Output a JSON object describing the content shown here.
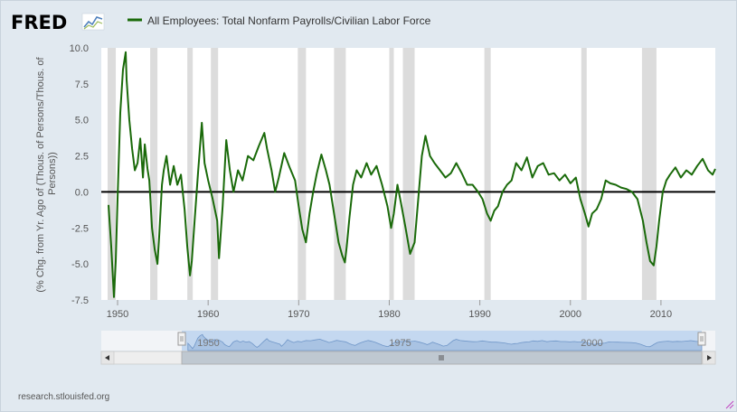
{
  "branding": {
    "logo": "FRED",
    "logo_icon": "fred-line-graph-icon"
  },
  "source": "research.stlouisfed.org",
  "colors": {
    "series": "#1a6a0a",
    "recession": "#dcdcdc",
    "zero_line": "#000000",
    "navigator_fill": "#a9c3e3",
    "navigator_bg": "#c4d8f0"
  },
  "navigator": {
    "labels": [
      "1950",
      "1975",
      "2000"
    ],
    "scrollbar_icons": [
      "scroll-left-arrow-icon",
      "scroll-grip-icon",
      "scroll-right-arrow-icon"
    ]
  },
  "chart_data": {
    "type": "line",
    "title": "",
    "ylabel": "(% Chg. from Yr. Ago of (Thous. of Persons/Thous. of Persons))",
    "xlabel": "",
    "xlim": [
      1948.2,
      2016.0
    ],
    "ylim": [
      -7.5,
      10.0
    ],
    "yticks": [
      10.0,
      7.5,
      5.0,
      2.5,
      0.0,
      -2.5,
      -5.0,
      -7.5
    ],
    "yticklabels": [
      "10.0",
      "7.5",
      "5.0",
      "2.5",
      "0.0",
      "-2.5",
      "-5.0",
      "-7.5"
    ],
    "xticks": [
      1950,
      1960,
      1970,
      1980,
      1990,
      2000,
      2010
    ],
    "xticklabels": [
      "1950",
      "1960",
      "1970",
      "1980",
      "1990",
      "2000",
      "2010"
    ],
    "grid": false,
    "legend": "top-left",
    "series": [
      {
        "name": "All Employees: Total Nonfarm Payrolls/Civilian Labor Force",
        "x": [
          1949.0,
          1949.3,
          1949.6,
          1949.8,
          1950.0,
          1950.3,
          1950.6,
          1950.9,
          1951.0,
          1951.3,
          1951.6,
          1951.9,
          1952.2,
          1952.5,
          1952.8,
          1953.0,
          1953.3,
          1953.5,
          1953.8,
          1954.1,
          1954.4,
          1954.6,
          1954.9,
          1955.1,
          1955.4,
          1955.8,
          1956.2,
          1956.6,
          1957.0,
          1957.4,
          1957.7,
          1958.0,
          1958.2,
          1958.5,
          1958.9,
          1959.3,
          1959.6,
          1960.0,
          1960.5,
          1961.0,
          1961.2,
          1961.6,
          1962.0,
          1962.4,
          1962.8,
          1963.3,
          1963.8,
          1964.4,
          1965.0,
          1965.6,
          1966.2,
          1966.5,
          1967.0,
          1967.4,
          1967.8,
          1968.4,
          1969.0,
          1969.6,
          1970.0,
          1970.4,
          1970.8,
          1971.2,
          1971.6,
          1972.0,
          1972.5,
          1973.0,
          1973.4,
          1973.9,
          1974.4,
          1974.8,
          1975.1,
          1975.3,
          1975.6,
          1976.0,
          1976.4,
          1976.9,
          1977.5,
          1978.0,
          1978.6,
          1979.2,
          1979.8,
          1980.2,
          1980.5,
          1980.9,
          1981.3,
          1981.8,
          1982.3,
          1982.8,
          1983.2,
          1983.6,
          1984.0,
          1984.5,
          1985.0,
          1985.6,
          1986.2,
          1986.8,
          1987.4,
          1988.0,
          1988.6,
          1989.2,
          1989.8,
          1990.3,
          1990.8,
          1991.2,
          1991.6,
          1992.0,
          1992.5,
          1993.0,
          1993.5,
          1994.0,
          1994.6,
          1995.2,
          1995.8,
          1996.4,
          1997.0,
          1997.6,
          1998.2,
          1998.8,
          1999.4,
          2000.0,
          2000.6,
          2001.1,
          2001.6,
          2002.0,
          2002.4,
          2002.9,
          2003.4,
          2003.9,
          2004.4,
          2005.0,
          2005.6,
          2006.2,
          2006.8,
          2007.4,
          2008.0,
          2008.4,
          2008.8,
          2009.2,
          2009.5,
          2009.8,
          2010.2,
          2010.6,
          2011.0,
          2011.6,
          2012.2,
          2012.8,
          2013.4,
          2014.0,
          2014.6,
          2015.2,
          2015.7,
          2016.0
        ],
        "y": [
          -0.9,
          -3.8,
          -7.3,
          -4.8,
          -0.5,
          5.5,
          8.5,
          9.7,
          7.8,
          5.0,
          3.0,
          1.5,
          2.0,
          3.7,
          1.0,
          3.3,
          1.6,
          0.8,
          -2.5,
          -4.0,
          -5.0,
          -3.0,
          0.5,
          1.5,
          2.5,
          0.5,
          1.8,
          0.5,
          1.2,
          -1.2,
          -3.8,
          -5.8,
          -4.8,
          -2.0,
          1.5,
          4.8,
          2.0,
          0.8,
          -0.5,
          -2.0,
          -4.6,
          -1.0,
          3.6,
          1.5,
          0.0,
          1.5,
          0.8,
          2.5,
          2.2,
          3.2,
          4.1,
          3.0,
          1.5,
          0.0,
          1.0,
          2.7,
          1.7,
          0.8,
          -1.0,
          -2.6,
          -3.5,
          -1.5,
          0.0,
          1.3,
          2.6,
          1.5,
          0.5,
          -1.5,
          -3.5,
          -4.4,
          -4.9,
          -3.8,
          -1.8,
          0.5,
          1.5,
          1.0,
          2.0,
          1.2,
          1.8,
          0.5,
          -1.0,
          -2.5,
          -1.5,
          0.5,
          -0.8,
          -2.5,
          -4.3,
          -3.5,
          -0.5,
          2.5,
          3.9,
          2.5,
          2.0,
          1.5,
          1.0,
          1.3,
          2.0,
          1.3,
          0.5,
          0.5,
          0.0,
          -0.5,
          -1.5,
          -2.0,
          -1.3,
          -1.0,
          0.0,
          0.5,
          0.8,
          2.0,
          1.5,
          2.4,
          1.0,
          1.8,
          2.0,
          1.2,
          1.3,
          0.8,
          1.2,
          0.6,
          1.0,
          -0.5,
          -1.5,
          -2.4,
          -1.5,
          -1.2,
          -0.5,
          0.8,
          0.6,
          0.5,
          0.3,
          0.2,
          0.0,
          -0.5,
          -2.0,
          -3.5,
          -4.8,
          -5.1,
          -3.8,
          -2.0,
          0.0,
          0.8,
          1.2,
          1.7,
          1.0,
          1.5,
          1.2,
          1.8,
          2.3,
          1.5,
          1.2,
          1.6
        ]
      }
    ],
    "recessions": [
      [
        1948.9,
        1949.8
      ],
      [
        1953.6,
        1954.4
      ],
      [
        1957.7,
        1958.3
      ],
      [
        1960.3,
        1961.1
      ],
      [
        1969.9,
        1970.8
      ],
      [
        1973.9,
        1975.2
      ],
      [
        1980.0,
        1980.5
      ],
      [
        1981.5,
        1982.8
      ],
      [
        1990.5,
        1991.2
      ],
      [
        2001.2,
        2001.8
      ],
      [
        2007.9,
        2009.5
      ]
    ]
  }
}
